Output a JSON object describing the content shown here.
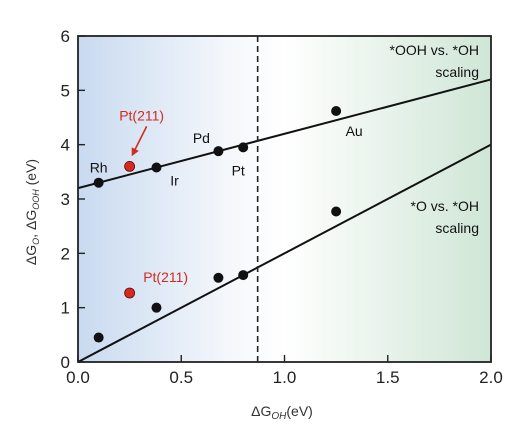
{
  "chart_data": {
    "type": "scatter",
    "xlabel": "ΔG",
    "xlabel_sub": "OH",
    "xlabel_unit": "(eV)",
    "ylabel": "ΔG",
    "ylabel_sub1": "O",
    "ylabel_mid": ", ΔG",
    "ylabel_sub2": "OOH",
    "ylabel_unit": " (eV)",
    "xlim": [
      0,
      2.0
    ],
    "ylim": [
      0,
      6
    ],
    "xticks": [
      "0.0",
      "0.5",
      "1.0",
      "1.5",
      "2.0"
    ],
    "xtick_values": [
      0,
      0.5,
      1.0,
      1.5,
      2.0
    ],
    "yticks": [
      "0",
      "1",
      "2",
      "3",
      "4",
      "5",
      "6"
    ],
    "ytick_values": [
      0,
      1,
      2,
      3,
      4,
      5,
      6
    ],
    "vertical_line_x": 0.87,
    "background": {
      "left_color": "#c8daf0",
      "right_color": "#cfe6d6"
    },
    "colors": {
      "points": "#111111",
      "highlight": "#d42a20",
      "lines": "#111111"
    },
    "series": [
      {
        "name": "*OOH vs. *OH scaling",
        "label_lines": [
          "*OOH vs. *OH",
          "scaling"
        ],
        "fit": {
          "x": [
            0,
            2.0
          ],
          "y": [
            3.2,
            5.2
          ]
        },
        "points": [
          {
            "x": 0.1,
            "y": 3.3,
            "label": "Rh"
          },
          {
            "x": 0.25,
            "y": 3.6,
            "label": "Pt(211)",
            "highlight": true
          },
          {
            "x": 0.38,
            "y": 3.58,
            "label": "Ir"
          },
          {
            "x": 0.68,
            "y": 3.88,
            "label": "Pd"
          },
          {
            "x": 0.8,
            "y": 3.95,
            "label": "Pt"
          },
          {
            "x": 1.25,
            "y": 4.62,
            "label": "Au"
          }
        ]
      },
      {
        "name": "*O vs. *OH scaling",
        "label_lines": [
          "*O vs. *OH",
          "scaling"
        ],
        "fit": {
          "x": [
            0,
            2.0
          ],
          "y": [
            0,
            4.0
          ]
        },
        "points": [
          {
            "x": 0.1,
            "y": 0.45
          },
          {
            "x": 0.25,
            "y": 1.27,
            "label": "Pt(211)",
            "highlight": true
          },
          {
            "x": 0.38,
            "y": 1.0
          },
          {
            "x": 0.68,
            "y": 1.55
          },
          {
            "x": 0.8,
            "y": 1.6
          },
          {
            "x": 1.25,
            "y": 2.77
          }
        ]
      }
    ]
  }
}
